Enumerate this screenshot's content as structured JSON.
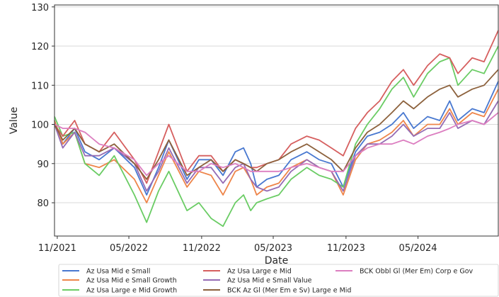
{
  "chart_data": {
    "type": "line",
    "xlabel": "Date",
    "ylabel": "Value",
    "x_range": [
      "2021-10-25",
      "2024-11-20"
    ],
    "ylim": [
      71.5,
      130.5
    ],
    "yticks": [
      80,
      90,
      100,
      110,
      120,
      130
    ],
    "xticks": [
      {
        "date": "2021-11-01",
        "label": "11/2021"
      },
      {
        "date": "2022-05-01",
        "label": "05/2022"
      },
      {
        "date": "2022-11-01",
        "label": "11/2022"
      },
      {
        "date": "2023-05-01",
        "label": "05/2023"
      },
      {
        "date": "2023-11-01",
        "label": "11/2023"
      },
      {
        "date": "2024-05-01",
        "label": "05/2024"
      }
    ],
    "grid": "horizontal",
    "legend": "bottom",
    "series": [
      {
        "name": "Az Usa Mid e Small",
        "color": "#4878d0",
        "points": [
          [
            "2021-10-25",
            101
          ],
          [
            "2021-11-15",
            95
          ],
          [
            "2021-12-15",
            99
          ],
          [
            "2022-01-10",
            93
          ],
          [
            "2022-02-15",
            91
          ],
          [
            "2022-03-25",
            94
          ],
          [
            "2022-05-15",
            89
          ],
          [
            "2022-06-15",
            82
          ],
          [
            "2022-07-15",
            89
          ],
          [
            "2022-08-10",
            96
          ],
          [
            "2022-09-25",
            86
          ],
          [
            "2022-10-25",
            91
          ],
          [
            "2022-11-25",
            91
          ],
          [
            "2022-12-25",
            87
          ],
          [
            "2023-01-25",
            93
          ],
          [
            "2023-02-15",
            94
          ],
          [
            "2023-03-05",
            90
          ],
          [
            "2023-03-20",
            84
          ],
          [
            "2023-04-15",
            86
          ],
          [
            "2023-05-15",
            87
          ],
          [
            "2023-06-15",
            91
          ],
          [
            "2023-07-25",
            93
          ],
          [
            "2023-08-25",
            91
          ],
          [
            "2023-09-25",
            90
          ],
          [
            "2023-10-25",
            84
          ],
          [
            "2023-11-25",
            93
          ],
          [
            "2023-12-25",
            97
          ],
          [
            "2024-01-25",
            98
          ],
          [
            "2024-02-25",
            100
          ],
          [
            "2024-03-25",
            103
          ],
          [
            "2024-04-20",
            99
          ],
          [
            "2024-05-25",
            102
          ],
          [
            "2024-06-25",
            101
          ],
          [
            "2024-07-20",
            106
          ],
          [
            "2024-08-10",
            101
          ],
          [
            "2024-09-15",
            104
          ],
          [
            "2024-10-15",
            103
          ],
          [
            "2024-11-20",
            111
          ]
        ]
      },
      {
        "name": "Az Usa Mid e Small Growth",
        "color": "#ee854a",
        "points": [
          [
            "2021-10-25",
            101
          ],
          [
            "2021-11-15",
            95
          ],
          [
            "2021-12-15",
            98
          ],
          [
            "2022-01-10",
            90
          ],
          [
            "2022-02-15",
            89
          ],
          [
            "2022-03-25",
            91
          ],
          [
            "2022-05-15",
            86
          ],
          [
            "2022-06-15",
            80
          ],
          [
            "2022-07-15",
            87
          ],
          [
            "2022-08-10",
            93
          ],
          [
            "2022-09-25",
            84
          ],
          [
            "2022-10-25",
            88
          ],
          [
            "2022-11-25",
            87
          ],
          [
            "2022-12-25",
            82
          ],
          [
            "2023-01-25",
            88
          ],
          [
            "2023-02-15",
            89
          ],
          [
            "2023-03-05",
            86
          ],
          [
            "2023-03-20",
            82
          ],
          [
            "2023-04-15",
            84
          ],
          [
            "2023-05-15",
            85
          ],
          [
            "2023-06-15",
            89
          ],
          [
            "2023-07-25",
            91
          ],
          [
            "2023-08-25",
            89
          ],
          [
            "2023-09-25",
            88
          ],
          [
            "2023-10-25",
            82
          ],
          [
            "2023-11-25",
            91
          ],
          [
            "2023-12-25",
            95
          ],
          [
            "2024-01-25",
            96
          ],
          [
            "2024-02-25",
            98
          ],
          [
            "2024-03-25",
            101
          ],
          [
            "2024-04-20",
            97
          ],
          [
            "2024-05-25",
            100
          ],
          [
            "2024-06-25",
            100
          ],
          [
            "2024-07-20",
            104
          ],
          [
            "2024-08-10",
            100
          ],
          [
            "2024-09-15",
            103
          ],
          [
            "2024-10-15",
            102
          ],
          [
            "2024-11-20",
            109
          ]
        ]
      },
      {
        "name": "Az Usa Large e Mid Growth",
        "color": "#6acc64",
        "points": [
          [
            "2021-10-25",
            102
          ],
          [
            "2021-11-15",
            97
          ],
          [
            "2021-12-15",
            98
          ],
          [
            "2022-01-10",
            90
          ],
          [
            "2022-02-15",
            87
          ],
          [
            "2022-03-25",
            92
          ],
          [
            "2022-05-15",
            82
          ],
          [
            "2022-06-15",
            75
          ],
          [
            "2022-07-15",
            83
          ],
          [
            "2022-08-10",
            88
          ],
          [
            "2022-09-25",
            78
          ],
          [
            "2022-10-25",
            80
          ],
          [
            "2022-11-25",
            76
          ],
          [
            "2022-12-25",
            74
          ],
          [
            "2023-01-25",
            80
          ],
          [
            "2023-02-15",
            82
          ],
          [
            "2023-03-05",
            78
          ],
          [
            "2023-03-20",
            80
          ],
          [
            "2023-04-15",
            81
          ],
          [
            "2023-05-15",
            82
          ],
          [
            "2023-06-15",
            86
          ],
          [
            "2023-07-25",
            89
          ],
          [
            "2023-08-25",
            87
          ],
          [
            "2023-09-25",
            86
          ],
          [
            "2023-10-25",
            84
          ],
          [
            "2023-11-25",
            95
          ],
          [
            "2023-12-25",
            100
          ],
          [
            "2024-01-25",
            104
          ],
          [
            "2024-02-25",
            109
          ],
          [
            "2024-03-25",
            112
          ],
          [
            "2024-04-20",
            107
          ],
          [
            "2024-05-25",
            113
          ],
          [
            "2024-06-25",
            116
          ],
          [
            "2024-07-20",
            117
          ],
          [
            "2024-08-10",
            110
          ],
          [
            "2024-09-15",
            114
          ],
          [
            "2024-10-15",
            113
          ],
          [
            "2024-11-20",
            120
          ]
        ]
      },
      {
        "name": "Az Usa Large e Mid",
        "color": "#d65f5f",
        "points": [
          [
            "2021-10-25",
            100
          ],
          [
            "2021-11-15",
            97
          ],
          [
            "2021-12-15",
            101
          ],
          [
            "2022-01-10",
            95
          ],
          [
            "2022-02-15",
            93
          ],
          [
            "2022-03-25",
            98
          ],
          [
            "2022-05-15",
            91
          ],
          [
            "2022-06-15",
            85
          ],
          [
            "2022-07-15",
            93
          ],
          [
            "2022-08-10",
            100
          ],
          [
            "2022-09-25",
            88
          ],
          [
            "2022-10-25",
            92
          ],
          [
            "2022-11-25",
            92
          ],
          [
            "2022-12-25",
            88
          ],
          [
            "2023-01-25",
            91
          ],
          [
            "2023-02-15",
            90
          ],
          [
            "2023-03-05",
            89
          ],
          [
            "2023-03-20",
            89
          ],
          [
            "2023-04-15",
            90
          ],
          [
            "2023-05-15",
            91
          ],
          [
            "2023-06-15",
            95
          ],
          [
            "2023-07-25",
            97
          ],
          [
            "2023-08-25",
            96
          ],
          [
            "2023-09-25",
            94
          ],
          [
            "2023-10-25",
            92
          ],
          [
            "2023-11-25",
            99
          ],
          [
            "2023-12-25",
            103
          ],
          [
            "2024-01-25",
            106
          ],
          [
            "2024-02-25",
            111
          ],
          [
            "2024-03-25",
            114
          ],
          [
            "2024-04-20",
            110
          ],
          [
            "2024-05-25",
            115
          ],
          [
            "2024-06-25",
            118
          ],
          [
            "2024-07-20",
            117
          ],
          [
            "2024-08-10",
            113
          ],
          [
            "2024-09-15",
            117
          ],
          [
            "2024-10-15",
            116
          ],
          [
            "2024-11-20",
            124
          ]
        ]
      },
      {
        "name": "Az Usa Mid e Small Value",
        "color": "#956cb4",
        "points": [
          [
            "2021-10-25",
            100
          ],
          [
            "2021-11-15",
            94
          ],
          [
            "2021-12-15",
            98
          ],
          [
            "2022-01-10",
            92
          ],
          [
            "2022-02-15",
            92
          ],
          [
            "2022-03-25",
            94
          ],
          [
            "2022-05-15",
            90
          ],
          [
            "2022-06-15",
            83
          ],
          [
            "2022-07-15",
            88
          ],
          [
            "2022-08-10",
            94
          ],
          [
            "2022-09-25",
            85
          ],
          [
            "2022-10-25",
            89
          ],
          [
            "2022-11-25",
            89
          ],
          [
            "2022-12-25",
            85
          ],
          [
            "2023-01-25",
            89
          ],
          [
            "2023-02-15",
            90
          ],
          [
            "2023-03-05",
            86
          ],
          [
            "2023-03-20",
            84
          ],
          [
            "2023-04-15",
            83
          ],
          [
            "2023-05-15",
            84
          ],
          [
            "2023-06-15",
            88
          ],
          [
            "2023-07-25",
            91
          ],
          [
            "2023-08-25",
            89
          ],
          [
            "2023-09-25",
            88
          ],
          [
            "2023-10-25",
            83
          ],
          [
            "2023-11-25",
            92
          ],
          [
            "2023-12-25",
            95
          ],
          [
            "2024-01-25",
            95
          ],
          [
            "2024-02-25",
            97
          ],
          [
            "2024-03-25",
            100
          ],
          [
            "2024-04-20",
            97
          ],
          [
            "2024-05-25",
            99
          ],
          [
            "2024-06-25",
            99
          ],
          [
            "2024-07-20",
            103
          ],
          [
            "2024-08-10",
            99
          ],
          [
            "2024-09-15",
            101
          ],
          [
            "2024-10-15",
            100
          ],
          [
            "2024-11-20",
            106
          ]
        ]
      },
      {
        "name": "BCK Az Gl (Mer Em e Sv) Large e Mid",
        "color": "#8c613c",
        "points": [
          [
            "2021-10-25",
            100
          ],
          [
            "2021-11-15",
            96
          ],
          [
            "2021-12-15",
            99
          ],
          [
            "2022-01-10",
            95
          ],
          [
            "2022-02-15",
            93
          ],
          [
            "2022-03-25",
            95
          ],
          [
            "2022-05-15",
            90
          ],
          [
            "2022-06-15",
            86
          ],
          [
            "2022-07-15",
            91
          ],
          [
            "2022-08-10",
            96
          ],
          [
            "2022-09-25",
            87
          ],
          [
            "2022-10-25",
            89
          ],
          [
            "2022-11-25",
            91
          ],
          [
            "2022-12-25",
            88
          ],
          [
            "2023-01-25",
            91
          ],
          [
            "2023-02-15",
            90
          ],
          [
            "2023-03-05",
            89
          ],
          [
            "2023-03-20",
            88
          ],
          [
            "2023-04-15",
            90
          ],
          [
            "2023-05-15",
            91
          ],
          [
            "2023-06-15",
            93
          ],
          [
            "2023-07-25",
            95
          ],
          [
            "2023-08-25",
            93
          ],
          [
            "2023-09-25",
            91
          ],
          [
            "2023-10-25",
            88
          ],
          [
            "2023-11-25",
            94
          ],
          [
            "2023-12-25",
            98
          ],
          [
            "2024-01-25",
            100
          ],
          [
            "2024-02-25",
            103
          ],
          [
            "2024-03-25",
            106
          ],
          [
            "2024-04-20",
            104
          ],
          [
            "2024-05-25",
            107
          ],
          [
            "2024-06-25",
            109
          ],
          [
            "2024-07-20",
            110
          ],
          [
            "2024-08-10",
            107
          ],
          [
            "2024-09-15",
            109
          ],
          [
            "2024-10-15",
            110
          ],
          [
            "2024-11-20",
            114
          ]
        ]
      },
      {
        "name": "BCK Obbl Gl (Mer Em) Corp e Gov",
        "color": "#dc7ec0",
        "points": [
          [
            "2021-10-25",
            100
          ],
          [
            "2021-11-15",
            99
          ],
          [
            "2021-12-15",
            99
          ],
          [
            "2022-01-10",
            98
          ],
          [
            "2022-02-15",
            95
          ],
          [
            "2022-03-25",
            94
          ],
          [
            "2022-05-15",
            91
          ],
          [
            "2022-06-15",
            87
          ],
          [
            "2022-07-15",
            90
          ],
          [
            "2022-08-10",
            92
          ],
          [
            "2022-09-25",
            88
          ],
          [
            "2022-10-25",
            88
          ],
          [
            "2022-11-25",
            90
          ],
          [
            "2022-12-25",
            89
          ],
          [
            "2023-01-25",
            90
          ],
          [
            "2023-02-15",
            89
          ],
          [
            "2023-03-05",
            88
          ],
          [
            "2023-03-20",
            88
          ],
          [
            "2023-04-15",
            88
          ],
          [
            "2023-05-15",
            88
          ],
          [
            "2023-06-15",
            89
          ],
          [
            "2023-07-25",
            90
          ],
          [
            "2023-08-25",
            89
          ],
          [
            "2023-09-25",
            88
          ],
          [
            "2023-10-25",
            88
          ],
          [
            "2023-11-25",
            92
          ],
          [
            "2023-12-25",
            94
          ],
          [
            "2024-01-25",
            95
          ],
          [
            "2024-02-25",
            95
          ],
          [
            "2024-03-25",
            96
          ],
          [
            "2024-04-20",
            95
          ],
          [
            "2024-05-25",
            97
          ],
          [
            "2024-06-25",
            98
          ],
          [
            "2024-07-20",
            99
          ],
          [
            "2024-08-10",
            100
          ],
          [
            "2024-09-15",
            101
          ],
          [
            "2024-10-15",
            100
          ],
          [
            "2024-11-20",
            103
          ]
        ]
      }
    ]
  }
}
